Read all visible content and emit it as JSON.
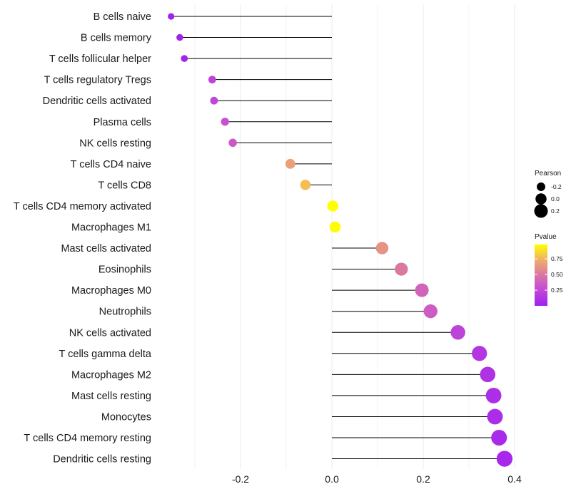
{
  "chart_data": {
    "type": "lollipop",
    "title": "",
    "xlabel": "",
    "ylabel": "",
    "xlim": [
      -0.355,
      0.43
    ],
    "xticks": [
      -0.2,
      0.0,
      0.2,
      0.4
    ],
    "xtick_labels": [
      "-0.2",
      "0.0",
      "0.2",
      "0.4"
    ],
    "grid": "vertical major and minor",
    "points": [
      {
        "label": "B cells naive",
        "pearson": -0.352,
        "pvalue": 0.01
      },
      {
        "label": "B cells memory",
        "pearson": -0.333,
        "pvalue": 0.01
      },
      {
        "label": "T cells follicular helper",
        "pearson": -0.323,
        "pvalue": 0.02
      },
      {
        "label": "T cells regulatory  Tregs",
        "pearson": -0.262,
        "pvalue": 0.23
      },
      {
        "label": "Dendritic cells activated",
        "pearson": -0.258,
        "pvalue": 0.24
      },
      {
        "label": "Plasma cells",
        "pearson": -0.234,
        "pvalue": 0.3
      },
      {
        "label": "NK cells resting",
        "pearson": -0.217,
        "pvalue": 0.34
      },
      {
        "label": "T cells CD4 naive",
        "pearson": -0.091,
        "pvalue": 0.68
      },
      {
        "label": "T cells CD8",
        "pearson": -0.058,
        "pvalue": 0.78
      },
      {
        "label": "T cells CD4 memory activated",
        "pearson": 0.002,
        "pvalue": 0.99
      },
      {
        "label": "Macrophages M1",
        "pearson": 0.007,
        "pvalue": 0.97
      },
      {
        "label": "Mast cells activated",
        "pearson": 0.11,
        "pvalue": 0.62
      },
      {
        "label": "Eosinophils",
        "pearson": 0.152,
        "pvalue": 0.5
      },
      {
        "label": "Macrophages M0",
        "pearson": 0.197,
        "pvalue": 0.4
      },
      {
        "label": "Neutrophils",
        "pearson": 0.216,
        "pvalue": 0.36
      },
      {
        "label": "NK cells activated",
        "pearson": 0.276,
        "pvalue": 0.22
      },
      {
        "label": "T cells gamma delta",
        "pearson": 0.323,
        "pvalue": 0.14
      },
      {
        "label": "Macrophages M2",
        "pearson": 0.341,
        "pvalue": 0.11
      },
      {
        "label": "Mast cells resting",
        "pearson": 0.354,
        "pvalue": 0.09
      },
      {
        "label": "Monocytes",
        "pearson": 0.357,
        "pvalue": 0.08
      },
      {
        "label": "T cells CD4 memory resting",
        "pearson": 0.366,
        "pvalue": 0.07
      },
      {
        "label": "Dendritic cells resting",
        "pearson": 0.378,
        "pvalue": 0.05
      }
    ],
    "legend": {
      "size": {
        "title": "Pearson",
        "entries": [
          {
            "label": "-0.2",
            "value": -0.2
          },
          {
            "label": "0.0",
            "value": 0.0
          },
          {
            "label": "0.2",
            "value": 0.2
          }
        ]
      },
      "color": {
        "title": "Pvalue",
        "ticks": [
          {
            "label": "0.75",
            "value": 0.75
          },
          {
            "label": "0.50",
            "value": 0.5
          },
          {
            "label": "0.25",
            "value": 0.25
          }
        ],
        "range": [
          0.0,
          0.98
        ],
        "low_color": "#a020f0",
        "high_color": "#ffff00"
      }
    }
  }
}
